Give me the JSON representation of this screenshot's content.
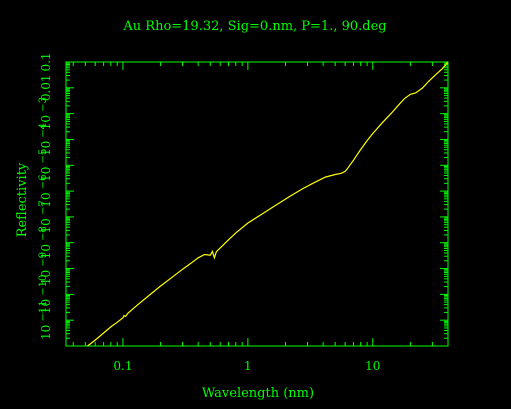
{
  "chart_data": {
    "type": "line",
    "title": "Au Rho=19.32, Sig=0.nm, P=1., 90.deg",
    "xlabel": "Wavelength (nm)",
    "ylabel": "Reflectivity",
    "x_scale": "log",
    "y_scale": "log",
    "xlim": [
      0.035,
      40
    ],
    "ylim": [
      1e-12,
      0.1
    ],
    "x_ticks": [
      {
        "value": 0.1,
        "label": "0.1"
      },
      {
        "value": 1,
        "label": "1"
      },
      {
        "value": 10,
        "label": "10"
      }
    ],
    "y_ticks": [
      {
        "value": 1e-11,
        "label": "10^-11"
      },
      {
        "value": 1e-10,
        "label": "10^-10"
      },
      {
        "value": 1e-09,
        "label": "10^-9"
      },
      {
        "value": 1e-08,
        "label": "10^-8"
      },
      {
        "value": 1e-07,
        "label": "10^-7"
      },
      {
        "value": 1e-06,
        "label": "10^-6"
      },
      {
        "value": 1e-05,
        "label": "10^-5"
      },
      {
        "value": 0.0001,
        "label": "10^-4"
      },
      {
        "value": 0.001,
        "label": "10^-3"
      },
      {
        "value": 0.01,
        "label": "0.01"
      },
      {
        "value": 0.1,
        "label": "0.1"
      }
    ],
    "grid": false,
    "series": [
      {
        "color": "#ffff00",
        "x": [
          0.052,
          0.06,
          0.07,
          0.08,
          0.09,
          0.1,
          0.102,
          0.105,
          0.11,
          0.13,
          0.16,
          0.2,
          0.25,
          0.3,
          0.35,
          0.4,
          0.45,
          0.5,
          0.52,
          0.54,
          0.56,
          0.6,
          0.7,
          0.8,
          1.0,
          1.3,
          1.7,
          2.2,
          2.8,
          3.5,
          4.2,
          5.0,
          5.6,
          6.0,
          6.3,
          6.6,
          7.0,
          7.5,
          8.0,
          9.0,
          10.0,
          12.0,
          14.0,
          16.0,
          18.0,
          20.0,
          22.0,
          25.0,
          28.0,
          32.0,
          36.0,
          40.0
        ],
        "y": [
          1e-12,
          1.7e-12,
          3.2e-12,
          5.5e-12,
          8.3e-12,
          1.25e-11,
          1.5e-11,
          1.4e-11,
          1.9e-11,
          3.8e-11,
          8.7e-11,
          2.1e-10,
          4.8e-10,
          9.4e-10,
          1.6e-09,
          2.6e-09,
          3.5e-09,
          3.3e-09,
          4.6e-09,
          2.6e-09,
          4.5e-09,
          6.3e-09,
          1.3e-08,
          2.4e-08,
          5.8e-08,
          1.3e-07,
          3e-07,
          6.5e-07,
          1.3e-06,
          2.3e-06,
          3.5e-06,
          4.4e-06,
          4.9e-06,
          5.8e-06,
          7.6e-06,
          1.05e-05,
          1.55e-05,
          2.6e-05,
          4.1e-05,
          9e-05,
          0.00017,
          0.00046,
          0.001,
          0.0021,
          0.0039,
          0.0056,
          0.0063,
          0.0098,
          0.0178,
          0.033,
          0.055,
          0.1
        ]
      }
    ]
  }
}
